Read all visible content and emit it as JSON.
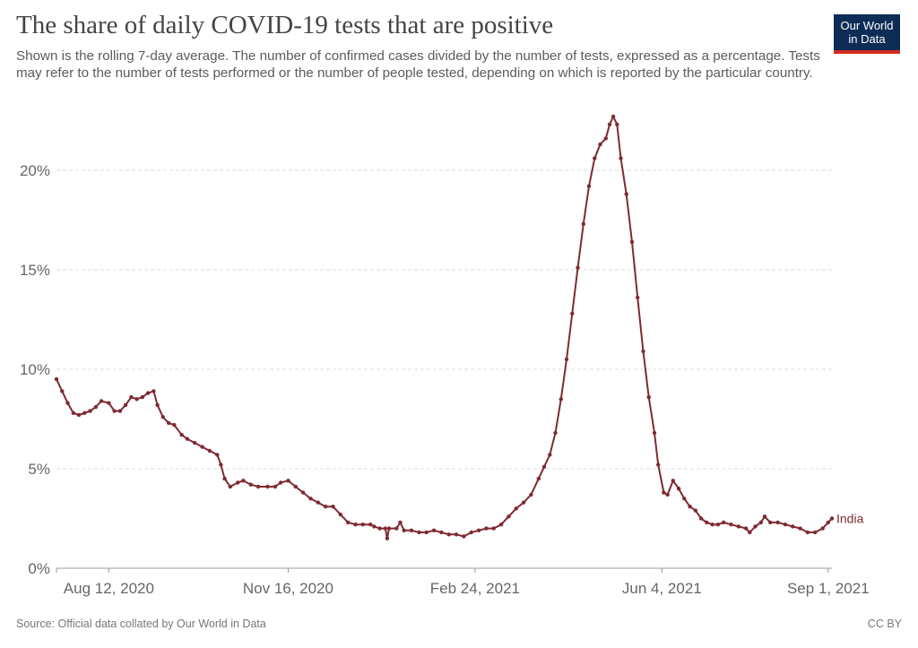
{
  "title": "The share of daily COVID-19 tests that are positive",
  "subtitle": "Shown is the rolling 7-day average. The number of confirmed cases divided by the number of tests, expressed as a percentage. Tests may refer to the number of tests performed or the number of people tested, depending on which is reported by the particular country.",
  "logo": {
    "line1": "Our World",
    "line2": "in Data"
  },
  "source": "Source: Official data collated by Our World in Data",
  "license": "CC BY",
  "chart_data": {
    "type": "line",
    "title": "The share of daily COVID-19 tests that are positive",
    "x_ticks": [
      "Aug 12, 2020",
      "Nov 16, 2020",
      "Feb 24, 2021",
      "Jun 4, 2021",
      "Sep 1, 2021"
    ],
    "y_ticks": [
      "0%",
      "5%",
      "10%",
      "15%",
      "20%"
    ],
    "ylim": [
      0,
      22.7
    ],
    "grid": true,
    "line_color": "#7f2a32",
    "series": [
      {
        "name": "India",
        "points": [
          [
            "2020-07-15",
            9.5
          ],
          [
            "2020-07-18",
            8.9
          ],
          [
            "2020-07-21",
            8.3
          ],
          [
            "2020-07-24",
            7.8
          ],
          [
            "2020-07-27",
            7.7
          ],
          [
            "2020-07-30",
            7.8
          ],
          [
            "2020-08-02",
            7.9
          ],
          [
            "2020-08-05",
            8.1
          ],
          [
            "2020-08-08",
            8.4
          ],
          [
            "2020-08-12",
            8.3
          ],
          [
            "2020-08-15",
            7.9
          ],
          [
            "2020-08-18",
            7.9
          ],
          [
            "2020-08-21",
            8.2
          ],
          [
            "2020-08-24",
            8.6
          ],
          [
            "2020-08-27",
            8.5
          ],
          [
            "2020-08-30",
            8.6
          ],
          [
            "2020-09-02",
            8.8
          ],
          [
            "2020-09-05",
            8.9
          ],
          [
            "2020-09-07",
            8.2
          ],
          [
            "2020-09-10",
            7.6
          ],
          [
            "2020-09-13",
            7.3
          ],
          [
            "2020-09-16",
            7.2
          ],
          [
            "2020-09-20",
            6.7
          ],
          [
            "2020-09-23",
            6.5
          ],
          [
            "2020-09-27",
            6.3
          ],
          [
            "2020-10-01",
            6.1
          ],
          [
            "2020-10-05",
            5.9
          ],
          [
            "2020-10-09",
            5.7
          ],
          [
            "2020-10-11",
            5.2
          ],
          [
            "2020-10-13",
            4.5
          ],
          [
            "2020-10-16",
            4.1
          ],
          [
            "2020-10-20",
            4.3
          ],
          [
            "2020-10-23",
            4.4
          ],
          [
            "2020-10-27",
            4.2
          ],
          [
            "2020-10-31",
            4.1
          ],
          [
            "2020-11-05",
            4.1
          ],
          [
            "2020-11-09",
            4.1
          ],
          [
            "2020-11-12",
            4.3
          ],
          [
            "2020-11-16",
            4.4
          ],
          [
            "2020-11-20",
            4.1
          ],
          [
            "2020-11-24",
            3.8
          ],
          [
            "2020-11-28",
            3.5
          ],
          [
            "2020-12-02",
            3.3
          ],
          [
            "2020-12-06",
            3.1
          ],
          [
            "2020-12-10",
            3.1
          ],
          [
            "2020-12-14",
            2.7
          ],
          [
            "2020-12-18",
            2.3
          ],
          [
            "2020-12-22",
            2.2
          ],
          [
            "2020-12-26",
            2.2
          ],
          [
            "2020-12-30",
            2.2
          ],
          [
            "2021-01-01",
            2.1
          ],
          [
            "2021-01-04",
            2.0
          ],
          [
            "2021-01-07",
            2.0
          ],
          [
            "2021-01-08",
            1.5
          ],
          [
            "2021-01-09",
            2.0
          ],
          [
            "2021-01-13",
            2.0
          ],
          [
            "2021-01-15",
            2.3
          ],
          [
            "2021-01-17",
            1.9
          ],
          [
            "2021-01-21",
            1.9
          ],
          [
            "2021-01-25",
            1.8
          ],
          [
            "2021-01-29",
            1.8
          ],
          [
            "2021-02-02",
            1.9
          ],
          [
            "2021-02-06",
            1.8
          ],
          [
            "2021-02-10",
            1.7
          ],
          [
            "2021-02-14",
            1.7
          ],
          [
            "2021-02-18",
            1.6
          ],
          [
            "2021-02-22",
            1.8
          ],
          [
            "2021-02-26",
            1.9
          ],
          [
            "2021-03-02",
            2.0
          ],
          [
            "2021-03-06",
            2.0
          ],
          [
            "2021-03-10",
            2.2
          ],
          [
            "2021-03-14",
            2.6
          ],
          [
            "2021-03-18",
            3.0
          ],
          [
            "2021-03-22",
            3.3
          ],
          [
            "2021-03-26",
            3.7
          ],
          [
            "2021-03-30",
            4.5
          ],
          [
            "2021-04-02",
            5.1
          ],
          [
            "2021-04-05",
            5.7
          ],
          [
            "2021-04-08",
            6.8
          ],
          [
            "2021-04-11",
            8.5
          ],
          [
            "2021-04-14",
            10.5
          ],
          [
            "2021-04-17",
            12.8
          ],
          [
            "2021-04-20",
            15.1
          ],
          [
            "2021-04-23",
            17.3
          ],
          [
            "2021-04-26",
            19.2
          ],
          [
            "2021-04-29",
            20.6
          ],
          [
            "2021-05-02",
            21.3
          ],
          [
            "2021-05-05",
            21.6
          ],
          [
            "2021-05-07",
            22.3
          ],
          [
            "2021-05-09",
            22.7
          ],
          [
            "2021-05-11",
            22.3
          ],
          [
            "2021-05-13",
            20.6
          ],
          [
            "2021-05-16",
            18.8
          ],
          [
            "2021-05-19",
            16.4
          ],
          [
            "2021-05-22",
            13.6
          ],
          [
            "2021-05-25",
            10.9
          ],
          [
            "2021-05-28",
            8.6
          ],
          [
            "2021-05-31",
            6.8
          ],
          [
            "2021-06-02",
            5.2
          ],
          [
            "2021-06-05",
            3.8
          ],
          [
            "2021-06-07",
            3.7
          ],
          [
            "2021-06-10",
            4.4
          ],
          [
            "2021-06-13",
            4.0
          ],
          [
            "2021-06-16",
            3.5
          ],
          [
            "2021-06-19",
            3.1
          ],
          [
            "2021-06-22",
            2.9
          ],
          [
            "2021-06-25",
            2.5
          ],
          [
            "2021-06-28",
            2.3
          ],
          [
            "2021-07-01",
            2.2
          ],
          [
            "2021-07-04",
            2.2
          ],
          [
            "2021-07-07",
            2.3
          ],
          [
            "2021-07-11",
            2.2
          ],
          [
            "2021-07-15",
            2.1
          ],
          [
            "2021-07-19",
            2.0
          ],
          [
            "2021-07-21",
            1.8
          ],
          [
            "2021-07-24",
            2.1
          ],
          [
            "2021-07-27",
            2.3
          ],
          [
            "2021-07-29",
            2.6
          ],
          [
            "2021-08-01",
            2.3
          ],
          [
            "2021-08-05",
            2.3
          ],
          [
            "2021-08-09",
            2.2
          ],
          [
            "2021-08-13",
            2.1
          ],
          [
            "2021-08-17",
            2.0
          ],
          [
            "2021-08-21",
            1.8
          ],
          [
            "2021-08-25",
            1.8
          ],
          [
            "2021-08-29",
            2.0
          ],
          [
            "2021-09-01",
            2.3
          ],
          [
            "2021-09-03",
            2.5
          ]
        ]
      }
    ]
  }
}
